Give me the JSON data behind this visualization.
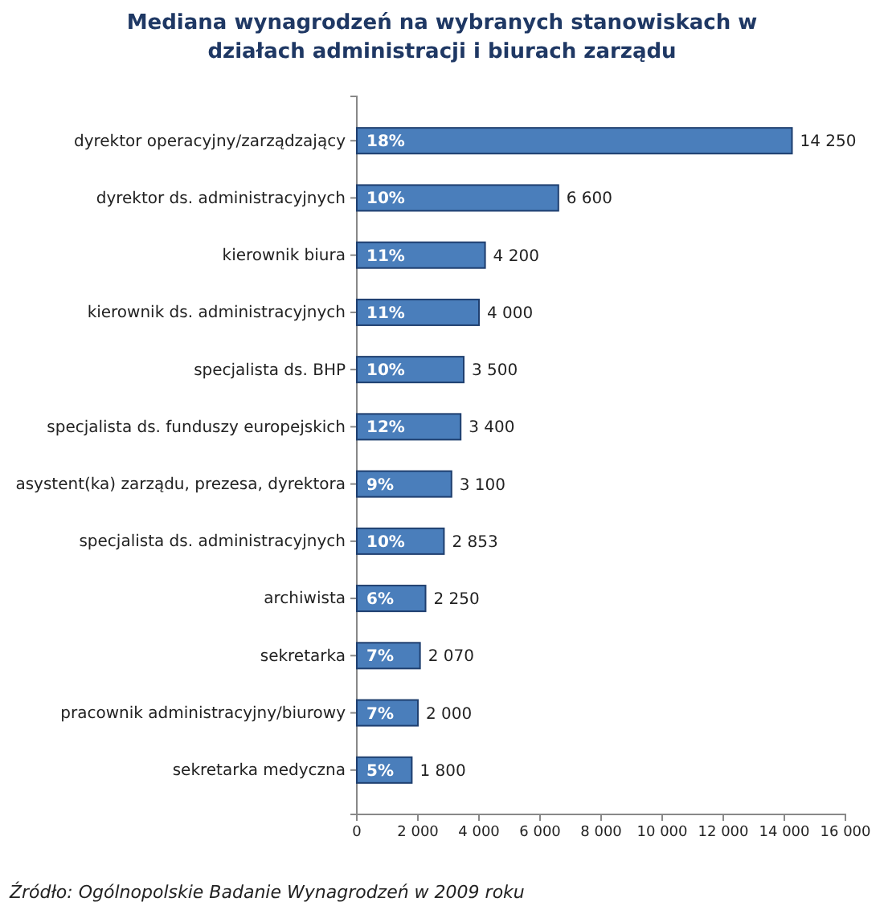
{
  "chart_data": {
    "type": "bar",
    "orientation": "horizontal",
    "title": "Mediana wynagrodzeń na wybranych stanowiskach w działach administracji  i biurach zarządu",
    "categories": [
      "dyrektor operacyjny/zarządzający",
      "dyrektor ds. administracyjnych",
      "kierownik biura",
      "kierownik ds. administracyjnych",
      "specjalista ds. BHP",
      "specjalista ds. funduszy europejskich",
      "asystent(ka) zarządu, prezesa, dyrektora",
      "specjalista ds. administracyjnych",
      "archiwista",
      "sekretarka",
      "pracownik administracyjny/biurowy",
      "sekretarka medyczna"
    ],
    "values": [
      14250,
      6600,
      4200,
      4000,
      3500,
      3400,
      3100,
      2853,
      2250,
      2070,
      2000,
      1800
    ],
    "color": "#4a7ebb",
    "data_labels": true,
    "xlim": [
      0,
      16000
    ],
    "xticks": [
      0,
      {
        "value": 2000,
        "label": "2 000"
      },
      {
        "value": 4000,
        "label": "4 000"
      },
      {
        "value": 6000,
        "label": "6 000"
      },
      {
        "value": 8000,
        "label": "8 000"
      },
      {
        "value": 10000,
        "label": "10 000"
      },
      {
        "value": 12000,
        "label": "12 000"
      },
      {
        "value": 14000,
        "label": "14 000"
      },
      {
        "value": 16000,
        "label": "16 000"
      }
    ],
    "annotations": [
      "18%",
      "10%",
      "11%",
      "11%",
      "10%",
      "12%",
      "9%",
      "10%",
      "6%",
      "7%",
      "7%",
      "5%",
      "Źródło: Ogólnopolskie Badanie Wynagrodzeń w 2009 roku"
    ],
    "grid": false
  }
}
